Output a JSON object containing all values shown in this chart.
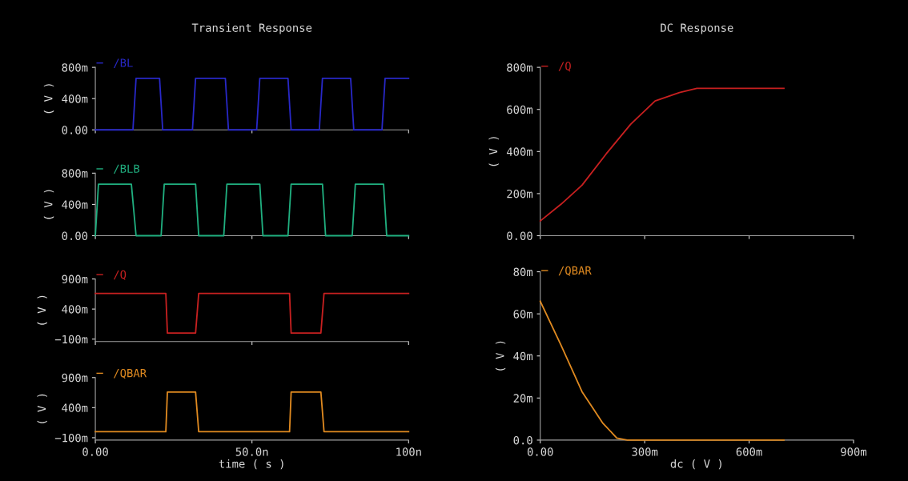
{
  "chart_data": [
    {
      "type": "line",
      "title": "Transient Response",
      "ylabel": "( V )",
      "legend": "top left",
      "tick_labels": "y",
      "grid": false,
      "marker": "none",
      "line_style": "solid",
      "xlim": [
        0,
        100
      ],
      "xticks": [
        0,
        50,
        100
      ],
      "ylim": [
        0,
        800
      ],
      "yticks": [
        {
          "value": 0,
          "label": "0.00"
        },
        {
          "value": 400,
          "label": "400m"
        },
        {
          "value": 800,
          "label": "800m"
        }
      ],
      "x": [
        0,
        12,
        13,
        20.5,
        21.5,
        31,
        32,
        41.5,
        42.5,
        51.5,
        52.5,
        61.5,
        62.5,
        71.5,
        72.5,
        81.5,
        82.5,
        91.5,
        92.5,
        100
      ],
      "series": [
        {
          "name": "/BL",
          "color": "#2828c8",
          "values": [
            0,
            0,
            660,
            660,
            0,
            0,
            660,
            660,
            0,
            0,
            660,
            660,
            0,
            0,
            660,
            660,
            0,
            0,
            660,
            660
          ]
        }
      ]
    },
    {
      "type": "line",
      "ylabel": "( V )",
      "legend": "top left",
      "tick_labels": "y",
      "grid": false,
      "marker": "none",
      "line_style": "solid",
      "xlim": [
        0,
        100
      ],
      "xticks": [
        0,
        50,
        100
      ],
      "ylim": [
        0,
        800
      ],
      "yticks": [
        {
          "value": 0,
          "label": "0.00"
        },
        {
          "value": 400,
          "label": "400m"
        },
        {
          "value": 800,
          "label": "800m"
        }
      ],
      "x": [
        0,
        1,
        11.5,
        13,
        21,
        22,
        32,
        33,
        41,
        42,
        52.5,
        53.5,
        61.5,
        62.5,
        72.5,
        73.5,
        82,
        83,
        92,
        93,
        100
      ],
      "series": [
        {
          "name": "/BLB",
          "color": "#20b080",
          "values": [
            0,
            660,
            660,
            0,
            0,
            660,
            660,
            0,
            0,
            660,
            660,
            0,
            0,
            660,
            660,
            0,
            0,
            660,
            660,
            0,
            0
          ]
        }
      ]
    },
    {
      "type": "line",
      "ylabel": "( V )",
      "legend": "top left",
      "tick_labels": "y",
      "grid": false,
      "marker": "none",
      "line_style": "solid",
      "xlim": [
        0,
        100
      ],
      "xticks": [
        0,
        50,
        100
      ],
      "ylim": [
        -140,
        900
      ],
      "yticks": [
        {
          "value": -100,
          "label": "−100m"
        },
        {
          "value": 400,
          "label": "400m"
        },
        {
          "value": 900,
          "label": "900m"
        }
      ],
      "x": [
        0,
        22.5,
        23,
        32,
        33,
        62,
        62.5,
        72,
        73,
        100
      ],
      "series": [
        {
          "name": "/Q",
          "color": "#c82020",
          "values": [
            660,
            660,
            0,
            0,
            660,
            660,
            0,
            0,
            660,
            660
          ]
        }
      ]
    },
    {
      "type": "line",
      "ylabel": "( V )",
      "xlabel": "time ( s )",
      "legend": "top left",
      "grid": false,
      "marker": "none",
      "line_style": "solid",
      "xlim": [
        0,
        100
      ],
      "xticks": [
        {
          "value": 0,
          "label": "0.00"
        },
        {
          "value": 50,
          "label": "50.0n"
        },
        {
          "value": 100,
          "label": "100n"
        }
      ],
      "ylim": [
        -140,
        900
      ],
      "yticks": [
        {
          "value": -100,
          "label": "−100m"
        },
        {
          "value": 400,
          "label": "400m"
        },
        {
          "value": 900,
          "label": "900m"
        }
      ],
      "x": [
        0,
        22.5,
        23,
        32,
        33,
        62,
        62.5,
        72,
        73,
        100
      ],
      "series": [
        {
          "name": "/QBAR",
          "color": "#e08a20",
          "values": [
            0,
            0,
            660,
            660,
            0,
            0,
            660,
            660,
            0,
            0
          ]
        }
      ]
    },
    {
      "type": "line",
      "title": "DC Response",
      "ylabel": "( V )",
      "legend": "top left",
      "tick_labels": "y",
      "grid": false,
      "marker": "none",
      "line_style": "solid",
      "xlim": [
        0,
        900
      ],
      "xticks": [
        0,
        300,
        600,
        900
      ],
      "ylim": [
        0,
        800
      ],
      "yticks": [
        {
          "value": 0,
          "label": "0.00"
        },
        {
          "value": 200,
          "label": "200m"
        },
        {
          "value": 400,
          "label": "400m"
        },
        {
          "value": 600,
          "label": "600m"
        },
        {
          "value": 800,
          "label": "800m"
        }
      ],
      "x": [
        0,
        60,
        120,
        190,
        260,
        330,
        400,
        450,
        550,
        700
      ],
      "series": [
        {
          "name": "/Q",
          "color": "#c82020",
          "values": [
            70,
            150,
            240,
            390,
            530,
            640,
            680,
            700,
            700,
            700
          ]
        }
      ]
    },
    {
      "type": "line",
      "ylabel": "( V )",
      "xlabel": "dc ( V )",
      "legend": "top left",
      "grid": false,
      "marker": "none",
      "line_style": "solid",
      "xlim": [
        0,
        900
      ],
      "xticks": [
        {
          "value": 0,
          "label": "0.00"
        },
        {
          "value": 300,
          "label": "300m"
        },
        {
          "value": 600,
          "label": "600m"
        },
        {
          "value": 900,
          "label": "900m"
        }
      ],
      "ylim": [
        0,
        80
      ],
      "yticks": [
        {
          "value": 0,
          "label": "0.0"
        },
        {
          "value": 20,
          "label": "20m"
        },
        {
          "value": 40,
          "label": "40m"
        },
        {
          "value": 60,
          "label": "60m"
        },
        {
          "value": 80,
          "label": "80m"
        }
      ],
      "x": [
        0,
        60,
        120,
        180,
        220,
        250,
        400,
        550,
        700
      ],
      "series": [
        {
          "name": "/QBAR",
          "color": "#e08a20",
          "values": [
            66,
            45,
            23,
            8,
            1,
            0,
            0,
            0,
            0
          ]
        }
      ]
    }
  ]
}
